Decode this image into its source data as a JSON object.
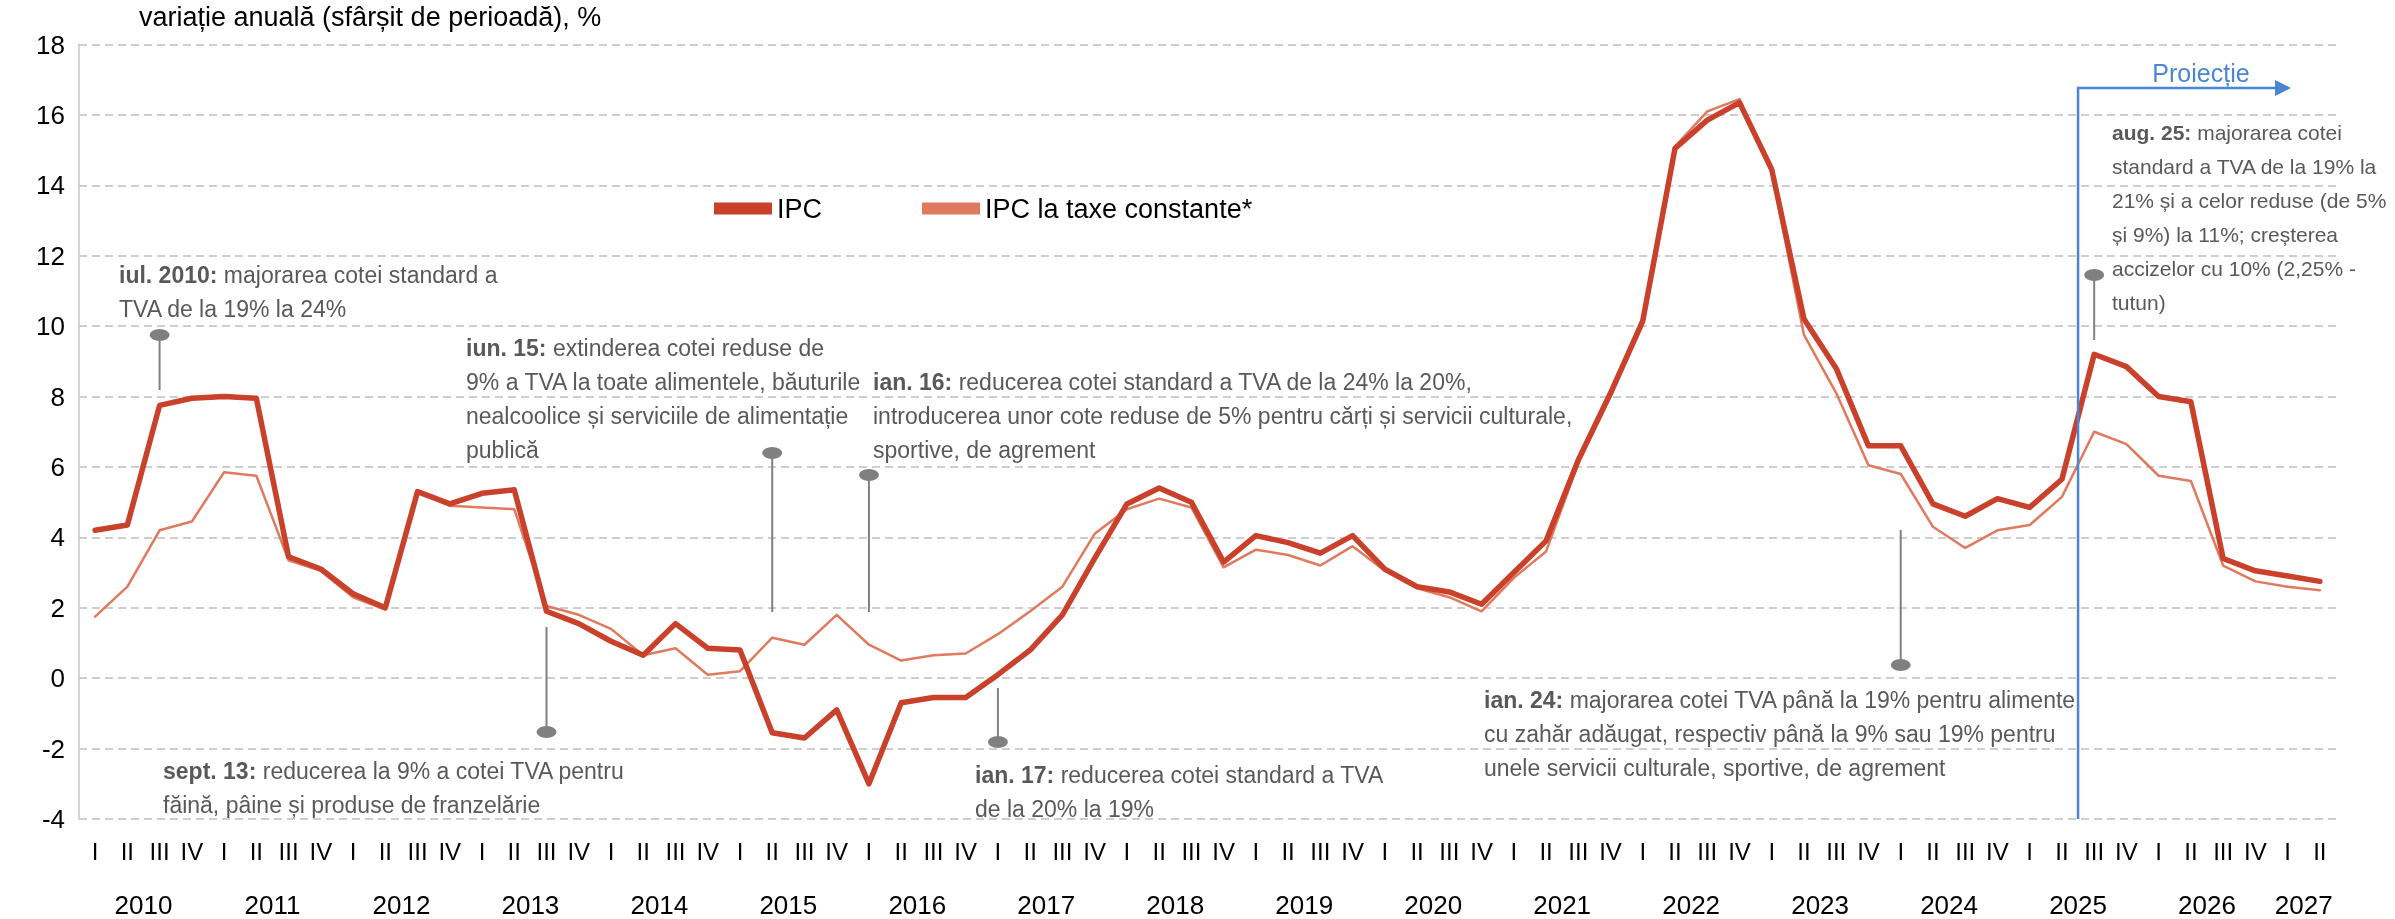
{
  "chart_data": {
    "type": "line",
    "ylabel": "variație anuală (sfârșit de perioadă), %",
    "categories": [
      "I",
      "II",
      "III",
      "IV",
      "I",
      "II",
      "III",
      "IV",
      "I",
      "II",
      "III",
      "IV",
      "I",
      "II",
      "III",
      "IV",
      "I",
      "II",
      "III",
      "IV",
      "I",
      "II",
      "III",
      "IV",
      "I",
      "II",
      "III",
      "IV",
      "I",
      "II",
      "III",
      "IV",
      "I",
      "II",
      "III",
      "IV",
      "I",
      "II",
      "III",
      "IV",
      "I",
      "II",
      "III",
      "IV",
      "I",
      "II",
      "III",
      "IV",
      "I",
      "II",
      "III",
      "IV",
      "I",
      "II",
      "III",
      "IV",
      "I",
      "II",
      "III",
      "IV",
      "I",
      "II",
      "III",
      "IV",
      "I",
      "II",
      "III",
      "IV",
      "I",
      "II"
    ],
    "series": [
      {
        "name": "IPC",
        "color": "#c9412b",
        "values": [
          4.2,
          4.35,
          7.75,
          7.95,
          8.0,
          7.95,
          3.45,
          3.1,
          2.4,
          2.0,
          5.3,
          4.95,
          5.25,
          5.35,
          1.9,
          1.55,
          1.05,
          0.65,
          1.55,
          0.85,
          0.8,
          -1.55,
          -1.7,
          -0.9,
          -3.0,
          -0.7,
          -0.55,
          -0.55,
          0.1,
          0.8,
          1.8,
          3.4,
          4.95,
          5.4,
          5.0,
          3.3,
          4.05,
          3.85,
          3.55,
          4.05,
          3.1,
          2.6,
          2.45,
          2.1,
          3.0,
          3.9,
          6.2,
          8.1,
          10.15,
          15.05,
          15.85,
          16.35,
          14.45,
          10.2,
          8.8,
          6.6,
          6.6,
          4.95,
          4.6,
          5.1,
          4.85,
          5.65,
          9.2,
          8.85,
          8.0,
          7.85,
          3.4,
          3.05,
          2.9,
          2.75
        ]
      },
      {
        "name": "IPC la taxe constante*",
        "color": "#df7a5e",
        "values": [
          1.75,
          2.6,
          4.2,
          4.45,
          5.85,
          5.75,
          3.35,
          3.05,
          2.3,
          1.95,
          5.3,
          4.9,
          4.85,
          4.8,
          2.05,
          1.8,
          1.4,
          0.65,
          0.85,
          0.1,
          0.2,
          1.15,
          0.95,
          1.8,
          0.95,
          0.5,
          0.65,
          0.7,
          1.25,
          1.9,
          2.6,
          4.1,
          4.8,
          5.1,
          4.85,
          3.15,
          3.65,
          3.5,
          3.2,
          3.75,
          3.05,
          2.55,
          2.3,
          1.9,
          2.85,
          3.6,
          6.1,
          8.0,
          10.05,
          15.1,
          16.1,
          16.45,
          14.35,
          9.75,
          8.1,
          6.05,
          5.8,
          4.3,
          3.7,
          4.2,
          4.35,
          5.15,
          7.0,
          6.65,
          5.75,
          5.6,
          3.2,
          2.75,
          2.6,
          2.5
        ]
      }
    ],
    "ylim": [
      -4,
      18
    ],
    "yticks": [
      -4,
      -2,
      0,
      2,
      4,
      6,
      8,
      10,
      12,
      14,
      16,
      18
    ],
    "grid": "y",
    "legend": "top left",
    "marker": "none",
    "annotations": [
      "iul. 2010: majorarea cotei standard a TVA de la 19% la 24%",
      "iun. 15: extinderea cotei reduse de 9% a TVA la toate alimentele, băuturile nealcoolice și serviciile de alimentație publică",
      "ian. 16: reducerea cotei standard a TVA de la 24% la 20%, introducerea unor cote reduse de 5% pentru cărți și servicii culturale, sportive, de agrement",
      "sept. 13: reducerea la 9% a cotei TVA pentru făină, pâine și produse de franzelărie",
      "ian. 17: reducerea cotei standard a TVA de la 20% la 19%",
      "ian. 24: majorarea cotei TVA până la 19% pentru alimente cu zahăr adăugat, respectiv până la 9% sau 19% pentru unele servicii culturale, sportive, de agrement",
      "aug. 25: majorarea cotei standard a TVA de la 19% la 21% și a celor reduse (de 5% și 9%) la 11%; creșterea accizelor cu 10% (2,25% - tutun)",
      "Proiecție",
      "2010",
      "2011",
      "2012",
      "2013",
      "2014",
      "2015",
      "2016",
      "2017",
      "2018",
      "2019",
      "2020",
      "2021",
      "2022",
      "2023",
      "2024",
      "2025",
      "2026",
      "2027"
    ]
  }
}
